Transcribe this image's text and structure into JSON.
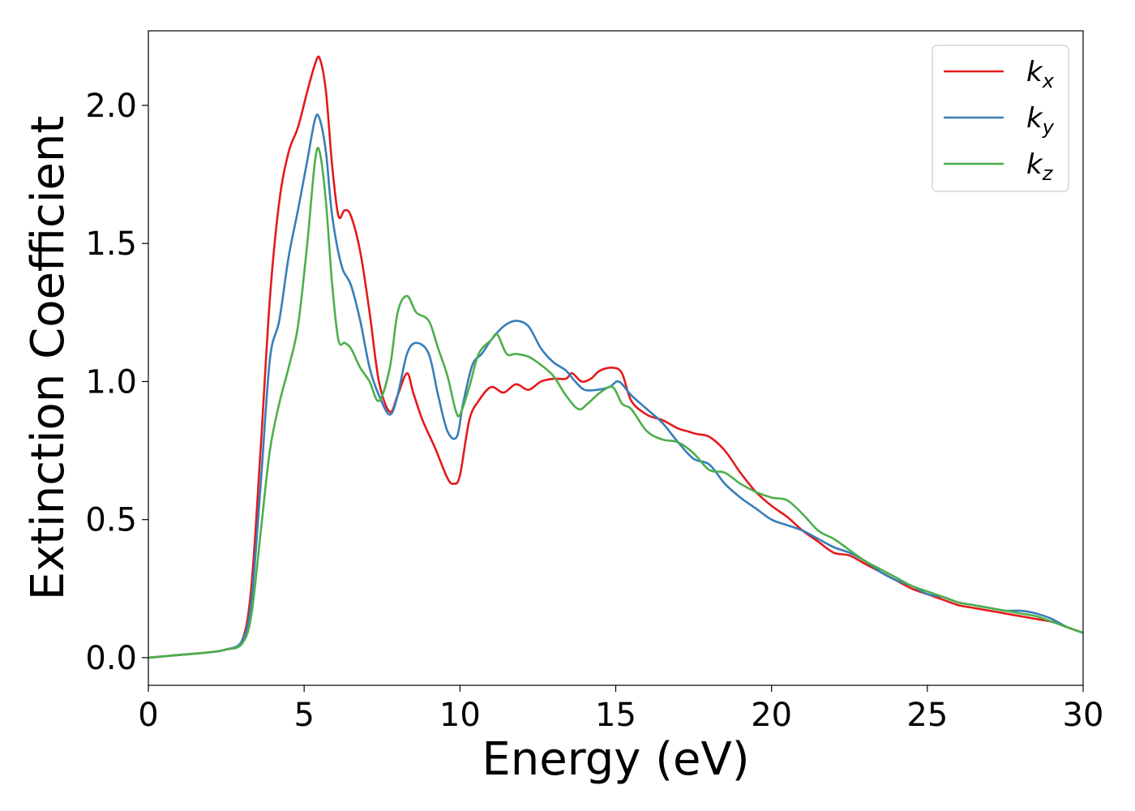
{
  "chart_data": {
    "type": "line",
    "xlabel": "Energy (eV)",
    "ylabel": "Extinction Coefficient",
    "xlim": [
      0,
      30
    ],
    "ylim": [
      -0.1,
      2.27
    ],
    "xticks": [
      0,
      5,
      10,
      15,
      20,
      25,
      30
    ],
    "yticks": [
      0.0,
      0.5,
      1.0,
      1.5,
      2.0
    ],
    "xtick_labels": [
      "0",
      "5",
      "10",
      "15",
      "20",
      "25",
      "30"
    ],
    "ytick_labels": [
      "0.0",
      "0.5",
      "1.0",
      "1.5",
      "2.0"
    ],
    "grid": false,
    "legend_position": "top-right",
    "series": [
      {
        "name": "k",
        "subscript": "x",
        "color": "#e41a1c",
        "x": [
          0,
          1,
          2,
          2.5,
          3.0,
          3.3,
          3.6,
          3.9,
          4.2,
          4.5,
          4.8,
          5.1,
          5.35,
          5.5,
          5.7,
          5.9,
          6.1,
          6.3,
          6.5,
          6.8,
          7.1,
          7.4,
          7.75,
          8.0,
          8.3,
          8.5,
          8.8,
          9.2,
          9.6,
          9.8,
          10.0,
          10.3,
          10.6,
          11.0,
          11.4,
          11.8,
          12.2,
          12.6,
          13.0,
          13.4,
          13.6,
          13.9,
          14.2,
          14.5,
          14.9,
          15.2,
          15.5,
          16.0,
          16.5,
          17.0,
          17.3,
          17.6,
          18.0,
          18.5,
          19.0,
          19.5,
          20.0,
          20.5,
          21.0,
          21.5,
          22.0,
          22.5,
          23.0,
          23.5,
          24.0,
          24.5,
          25.0,
          25.5,
          26.0,
          26.5,
          27.0,
          27.5,
          28.0,
          28.5,
          29.0,
          29.5,
          30.0
        ],
        "y": [
          0.0,
          0.01,
          0.02,
          0.03,
          0.06,
          0.25,
          0.75,
          1.3,
          1.65,
          1.83,
          1.92,
          2.05,
          2.15,
          2.17,
          2.05,
          1.78,
          1.6,
          1.62,
          1.6,
          1.47,
          1.25,
          1.0,
          0.89,
          0.95,
          1.03,
          0.96,
          0.86,
          0.76,
          0.65,
          0.63,
          0.66,
          0.86,
          0.93,
          0.98,
          0.96,
          0.99,
          0.97,
          1.0,
          1.01,
          1.01,
          1.03,
          1.0,
          1.01,
          1.04,
          1.05,
          1.03,
          0.93,
          0.88,
          0.86,
          0.83,
          0.82,
          0.81,
          0.8,
          0.75,
          0.67,
          0.6,
          0.55,
          0.51,
          0.46,
          0.42,
          0.38,
          0.37,
          0.34,
          0.31,
          0.28,
          0.25,
          0.23,
          0.21,
          0.19,
          0.18,
          0.17,
          0.16,
          0.15,
          0.14,
          0.13,
          0.11,
          0.09
        ]
      },
      {
        "name": "k",
        "subscript": "y",
        "color": "#377eb8",
        "x": [
          0,
          1,
          2,
          2.5,
          3.0,
          3.3,
          3.6,
          3.9,
          4.2,
          4.5,
          4.8,
          5.1,
          5.35,
          5.5,
          5.7,
          5.9,
          6.2,
          6.5,
          6.8,
          7.1,
          7.4,
          7.75,
          8.0,
          8.3,
          8.6,
          9.0,
          9.3,
          9.6,
          9.9,
          10.1,
          10.4,
          10.7,
          11.0,
          11.4,
          11.8,
          12.2,
          12.6,
          13.0,
          13.4,
          13.7,
          14.0,
          14.4,
          14.8,
          15.1,
          15.5,
          16.0,
          16.5,
          17.0,
          17.5,
          18.0,
          18.5,
          19.0,
          19.5,
          20.0,
          20.5,
          21.0,
          21.5,
          22.0,
          22.5,
          23.0,
          23.5,
          24.0,
          24.5,
          25.0,
          25.5,
          26.0,
          26.5,
          27.0,
          27.5,
          28.0,
          28.5,
          29.0,
          29.5,
          30.0
        ],
        "y": [
          0.0,
          0.01,
          0.02,
          0.03,
          0.06,
          0.2,
          0.62,
          1.08,
          1.22,
          1.45,
          1.62,
          1.8,
          1.95,
          1.95,
          1.83,
          1.6,
          1.42,
          1.35,
          1.22,
          1.05,
          0.95,
          0.88,
          0.95,
          1.1,
          1.14,
          1.1,
          0.95,
          0.82,
          0.8,
          0.92,
          1.06,
          1.1,
          1.15,
          1.2,
          1.22,
          1.2,
          1.12,
          1.07,
          1.04,
          1.0,
          0.97,
          0.97,
          0.98,
          1.0,
          0.95,
          0.9,
          0.85,
          0.78,
          0.72,
          0.7,
          0.63,
          0.58,
          0.54,
          0.5,
          0.48,
          0.46,
          0.43,
          0.4,
          0.38,
          0.35,
          0.31,
          0.28,
          0.26,
          0.23,
          0.22,
          0.2,
          0.19,
          0.18,
          0.17,
          0.17,
          0.16,
          0.14,
          0.11,
          0.09
        ]
      },
      {
        "name": "k",
        "subscript": "z",
        "color": "#4daf4a",
        "x": [
          0,
          1,
          2,
          2.5,
          3.0,
          3.3,
          3.6,
          3.9,
          4.2,
          4.5,
          4.8,
          5.1,
          5.35,
          5.5,
          5.7,
          5.9,
          6.1,
          6.3,
          6.5,
          6.8,
          7.1,
          7.4,
          7.75,
          8.0,
          8.3,
          8.6,
          9.0,
          9.3,
          9.6,
          9.85,
          10.0,
          10.3,
          10.6,
          11.0,
          11.2,
          11.5,
          11.8,
          12.2,
          12.6,
          13.0,
          13.4,
          13.8,
          14.1,
          14.5,
          14.9,
          15.2,
          15.5,
          16.0,
          16.5,
          17.0,
          17.5,
          18.0,
          18.5,
          19.0,
          19.5,
          20.0,
          20.5,
          21.0,
          21.5,
          22.0,
          22.5,
          23.0,
          23.5,
          24.0,
          24.5,
          25.0,
          25.5,
          26.0,
          26.5,
          27.0,
          27.5,
          28.0,
          28.5,
          29.0,
          29.5,
          30.0
        ],
        "y": [
          0.0,
          0.01,
          0.02,
          0.03,
          0.05,
          0.15,
          0.45,
          0.75,
          0.92,
          1.05,
          1.2,
          1.5,
          1.8,
          1.83,
          1.65,
          1.35,
          1.15,
          1.14,
          1.12,
          1.05,
          1.0,
          0.93,
          1.05,
          1.25,
          1.31,
          1.25,
          1.22,
          1.12,
          1.02,
          0.9,
          0.88,
          0.98,
          1.1,
          1.15,
          1.17,
          1.1,
          1.1,
          1.09,
          1.06,
          1.02,
          0.95,
          0.9,
          0.92,
          0.96,
          0.98,
          0.92,
          0.9,
          0.82,
          0.79,
          0.78,
          0.74,
          0.68,
          0.67,
          0.63,
          0.6,
          0.58,
          0.57,
          0.52,
          0.46,
          0.43,
          0.39,
          0.35,
          0.32,
          0.29,
          0.26,
          0.24,
          0.22,
          0.2,
          0.19,
          0.18,
          0.17,
          0.16,
          0.15,
          0.13,
          0.11,
          0.09
        ]
      }
    ]
  }
}
